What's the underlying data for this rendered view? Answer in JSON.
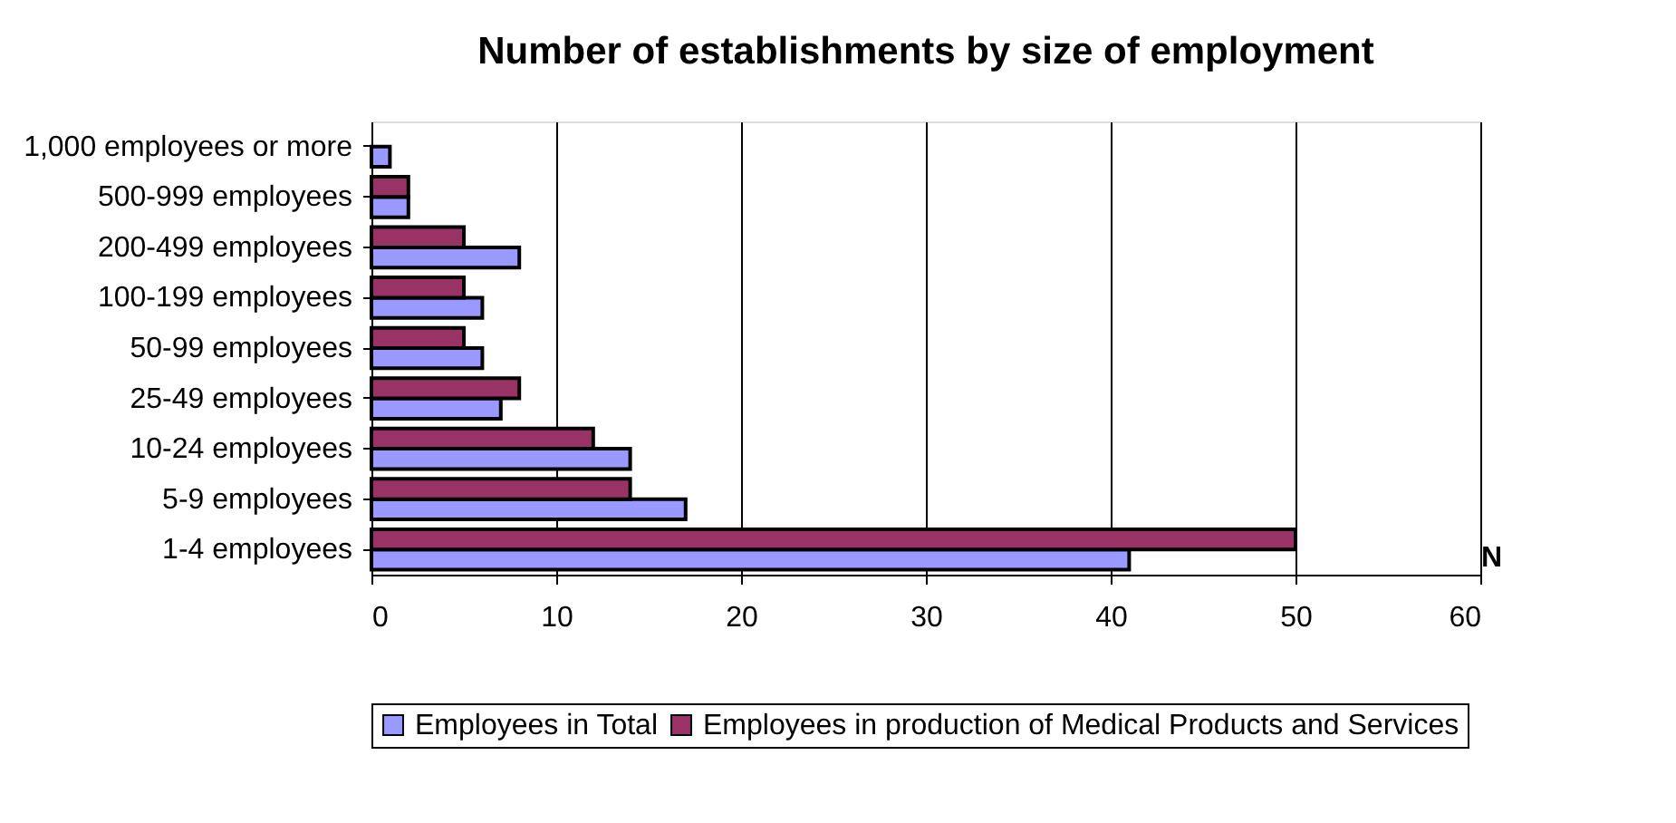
{
  "chart_data": {
    "type": "bar",
    "orientation": "horizontal",
    "title": "Number of establishments by size of employment",
    "xlabel": "N",
    "categories": [
      "1,000 employees or more",
      "500-999 employees",
      "200-499 employees",
      "100-199 employees",
      "50-99 employees",
      "25-49 employees",
      "10-24 employees",
      "5-9 employees",
      "1-4 employees"
    ],
    "series": [
      {
        "name": "Employees in Total",
        "color": "#9999ff",
        "values": [
          1,
          2,
          8,
          6,
          6,
          7,
          14,
          17,
          41
        ]
      },
      {
        "name": "Employees in production of Medical Products and Services",
        "color": "#993366",
        "values": [
          null,
          2,
          5,
          5,
          5,
          8,
          12,
          14,
          50
        ]
      }
    ],
    "xlim": [
      0,
      60
    ],
    "xticks": [
      0,
      10,
      20,
      30,
      40,
      50,
      60
    ],
    "grid": "x",
    "legend": "bottom"
  }
}
